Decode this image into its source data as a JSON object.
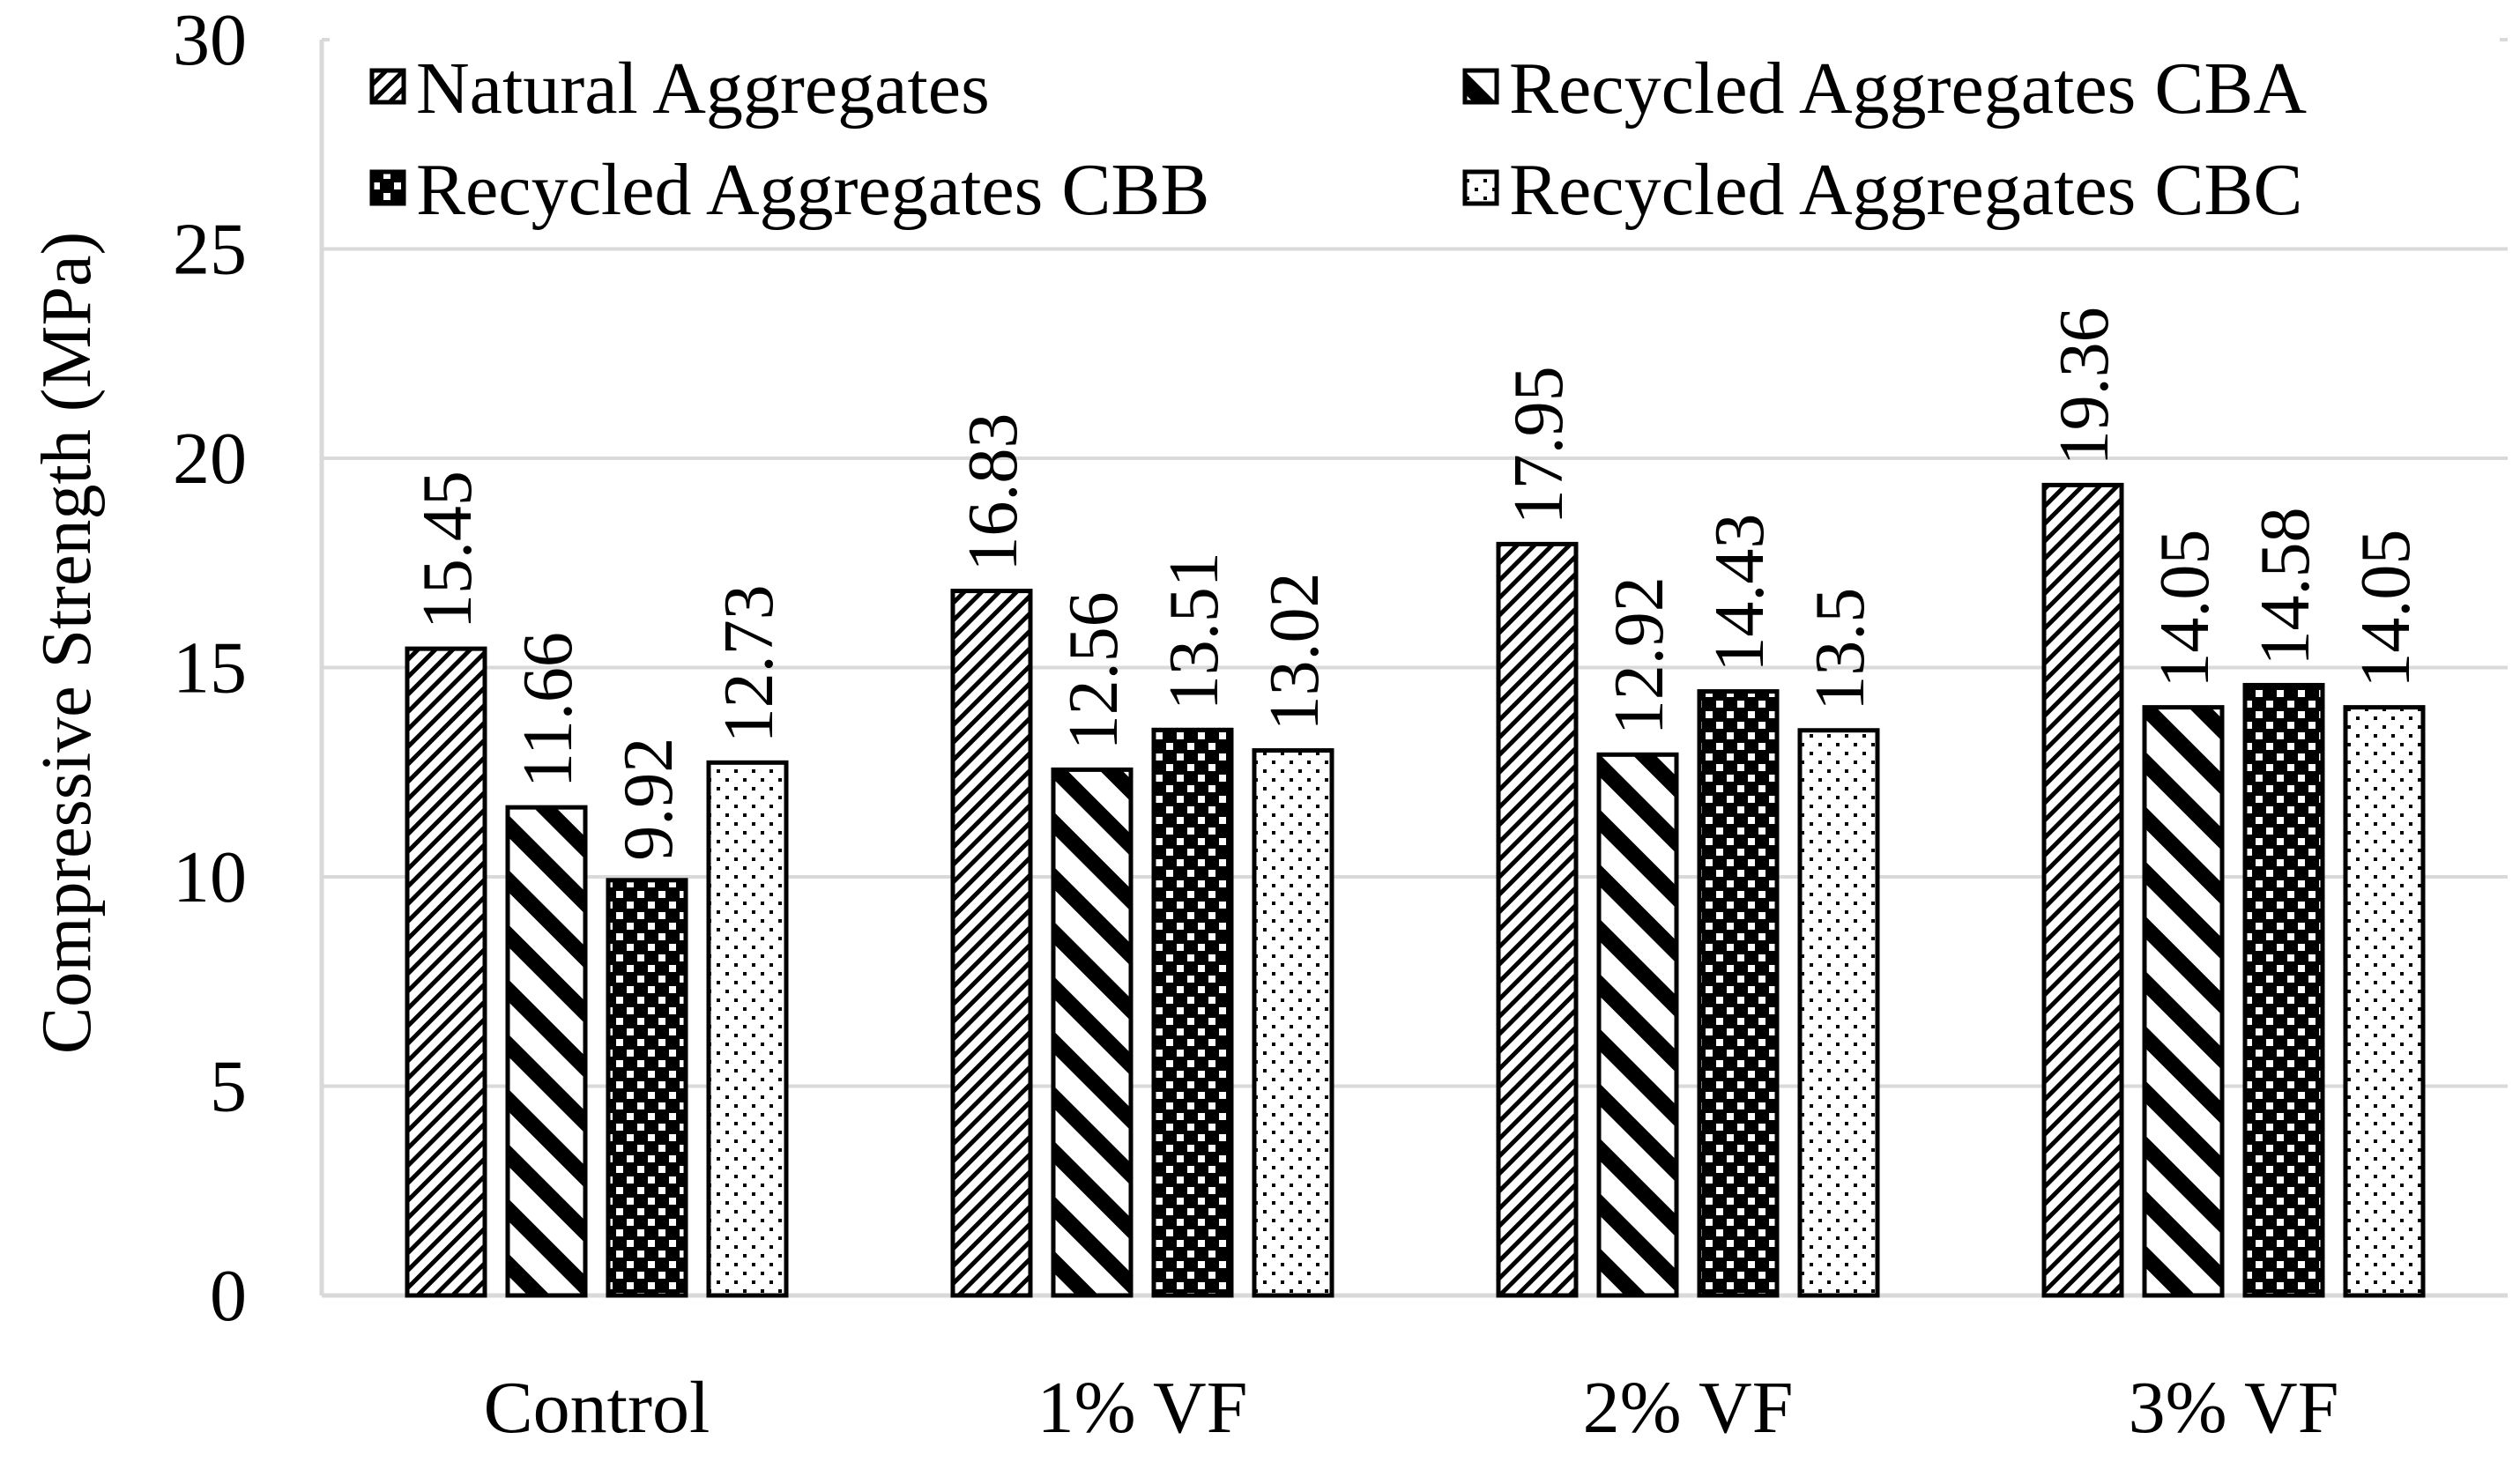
{
  "chart_data": {
    "type": "bar",
    "title": "",
    "xlabel": "",
    "ylabel": "Compressive Strength (MPa)",
    "ylim": [
      0,
      30
    ],
    "ytick_step": 5,
    "grid": true,
    "legend_position": "top",
    "categories": [
      "Control",
      "1% VF",
      "2% VF",
      "3% VF"
    ],
    "series": [
      {
        "name": "Natural Aggregates",
        "pattern": "diag-fine",
        "values": [
          15.45,
          16.83,
          17.95,
          19.36
        ]
      },
      {
        "name": "Recycled Aggregates CBA",
        "pattern": "diag-wide",
        "values": [
          11.66,
          12.56,
          12.92,
          14.05
        ]
      },
      {
        "name": "Recycled Aggregates CBB",
        "pattern": "checker",
        "values": [
          9.92,
          13.51,
          14.43,
          14.58
        ]
      },
      {
        "name": "Recycled Aggregates CBC",
        "pattern": "dots",
        "values": [
          12.73,
          13.02,
          13.5,
          14.05
        ]
      }
    ],
    "value_labels": [
      [
        "15.45",
        "11.66",
        "9.92",
        "12.73"
      ],
      [
        "16.83",
        "12.56",
        "13.51",
        "13.02"
      ],
      [
        "17.95",
        "12.92",
        "14.43",
        "13.5"
      ],
      [
        "19.36",
        "14.05",
        "14.58",
        "14.05"
      ]
    ]
  },
  "colors": {
    "bar_stroke": "#000000",
    "grid": "#d9d9d9",
    "axis": "#d9d9d9",
    "background": "#ffffff"
  }
}
